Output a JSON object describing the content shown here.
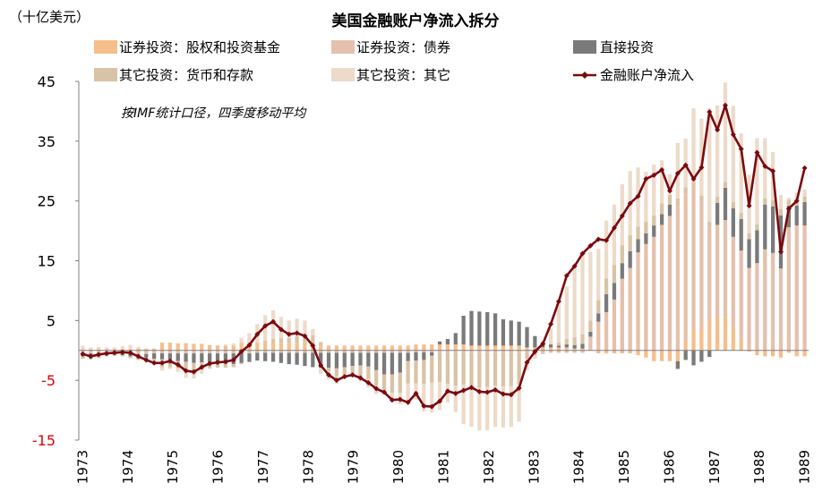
{
  "colors": {
    "equity": "#F6BE8A",
    "debt": "#E4C0AD",
    "fdi": "#7A7A7A",
    "currency_deposits": "#D9C3A6",
    "other_other": "#EDDAC9",
    "net_flow": "#7B0A0F",
    "negative_tick": "#E00000",
    "axis": "#808080"
  },
  "chart_data": {
    "type": "bar",
    "stacked": true,
    "title": "美国金融账户净流入拆分",
    "unit_label": "（十亿美元）",
    "annotation": "按IMF统计口径，四季度移动平均",
    "ylim": [
      -15,
      45
    ],
    "y_ticks": [
      {
        "value": 45,
        "label": "45"
      },
      {
        "value": 35,
        "label": "35"
      },
      {
        "value": 25,
        "label": "25"
      },
      {
        "value": 15,
        "label": "15"
      },
      {
        "value": 5,
        "label": "5"
      },
      {
        "value": -5,
        "label": "-5"
      },
      {
        "value": -15,
        "label": "-15"
      }
    ],
    "x_tick_labels": [
      "1973",
      "1974",
      "1975",
      "1976",
      "1977",
      "1978",
      "1979",
      "1980",
      "1981",
      "1982",
      "1983",
      "1984",
      "1985",
      "1986",
      "1987",
      "1988",
      "1989"
    ],
    "grid": false,
    "legend_position": "top",
    "series": [
      {
        "key": "equity",
        "name": "证券投资：股权和投资基金",
        "kind": "bar",
        "values": [
          0.2,
          0.2,
          0.2,
          0.2,
          0.2,
          0.2,
          0.2,
          0.3,
          0.3,
          0.3,
          1.3,
          1.3,
          1.2,
          1.2,
          1.1,
          1.1,
          0.9,
          0.8,
          0.8,
          0.8,
          1.3,
          1.3,
          1.3,
          1.3,
          1.3,
          1.2,
          1.2,
          1.2,
          1.2,
          0.8,
          0.8,
          0.8,
          0.8,
          0.8,
          0.8,
          0.8,
          0.8,
          0.8,
          0.8,
          0.8,
          0.8,
          0.8,
          1.0,
          1.0,
          1.0,
          1.0,
          1.0,
          1.0,
          1.0,
          0.8,
          0.8,
          0.8,
          0.8,
          0.8,
          0.8,
          0.8,
          0.5,
          0.5,
          0.5,
          0.5,
          0.5,
          0.5,
          0.3,
          0.3,
          0.3,
          -0.5,
          -0.5,
          -0.5,
          -0.5,
          -0.5,
          -0.8,
          -1.2,
          -1.8,
          -1.8,
          -1.8,
          -1.8,
          1.6,
          3.4,
          3.7,
          4.9,
          5.5,
          5.6,
          3.9,
          1.7,
          -0.2,
          -0.8,
          -1.0,
          -1.0,
          -1.2,
          -0.4,
          -1.0,
          -1.0
        ]
      },
      {
        "key": "debt",
        "name": "证券投资：债券",
        "kind": "bar",
        "values": [
          -0.4,
          -0.5,
          -0.4,
          -0.4,
          -0.4,
          -0.4,
          -0.4,
          -0.7,
          -0.6,
          -0.5,
          -0.5,
          -0.5,
          -0.5,
          -0.5,
          -0.5,
          -0.5,
          -0.5,
          -0.5,
          -0.5,
          -0.5,
          -0.5,
          -0.5,
          -0.4,
          -0.4,
          -0.4,
          -0.4,
          -0.4,
          -0.4,
          -0.4,
          -0.4,
          -0.4,
          -0.4,
          -0.4,
          -0.4,
          -0.4,
          -0.4,
          -0.4,
          -0.4,
          -0.4,
          -0.4,
          -0.4,
          -0.4,
          -0.3,
          -0.3,
          -0.3,
          -0.3,
          -0.3,
          -0.3,
          -0.3,
          -0.4,
          -0.4,
          -0.4,
          -0.4,
          -0.4,
          -0.4,
          -0.4,
          -0.4,
          -0.4,
          -0.4,
          -0.4,
          -0.4,
          -0.4,
          -0.4,
          -0.4,
          2.0,
          4.8,
          6.4,
          8.5,
          12.0,
          13.8,
          16.4,
          17.8,
          19.0,
          21.0,
          22.5,
          24.0,
          24.5,
          24.8,
          21.2,
          15.6,
          15.5,
          16.2,
          15.1,
          15.0,
          13.8,
          14.6,
          16.9,
          16.3,
          13.7,
          20.6,
          20.9,
          20.9
        ]
      },
      {
        "key": "fdi",
        "name": "直接投资",
        "kind": "bar",
        "values": [
          -0.6,
          -0.8,
          -0.6,
          -0.4,
          -0.3,
          -0.4,
          -0.6,
          -0.6,
          -0.6,
          -0.9,
          -1.0,
          -1.1,
          -1.3,
          -1.4,
          -1.6,
          -1.5,
          -1.6,
          -1.6,
          -1.7,
          -1.8,
          -1.6,
          -1.4,
          -1.3,
          -1.4,
          -1.5,
          -1.7,
          -1.9,
          -2.0,
          -2.2,
          -2.4,
          -2.5,
          -2.5,
          -2.6,
          -2.4,
          -2.2,
          -2.1,
          -2.3,
          -2.9,
          -3.6,
          -3.6,
          -3.3,
          -1.4,
          -1.4,
          -1.3,
          -0.6,
          0.5,
          0.9,
          1.9,
          4.8,
          5.8,
          5.7,
          5.6,
          5.4,
          4.4,
          4.2,
          4.0,
          3.4,
          1.9,
          0.8,
          0.5,
          0.3,
          0.5,
          0.6,
          0.8,
          0.8,
          1.4,
          3.0,
          2.8,
          2.6,
          2.8,
          2.2,
          1.8,
          1.9,
          1.8,
          1.9,
          -1.3,
          -1.6,
          -2.5,
          -1.9,
          -1.1,
          3.7,
          5.4,
          4.8,
          5.3,
          4.8,
          5.5,
          7.5,
          7.8,
          8.9,
          3.6,
          3.3,
          3.9
        ]
      },
      {
        "key": "currency_deposits",
        "name": "其它投资：货币和存款",
        "kind": "bar",
        "values": [
          -0.4,
          -0.2,
          -0.3,
          -0.2,
          -0.2,
          -0.2,
          -0.3,
          -0.3,
          -0.4,
          -0.3,
          -1.3,
          -1.2,
          -1.2,
          -1.2,
          -1.3,
          -1.2,
          -0.9,
          -0.8,
          -0.7,
          -0.5,
          -0.2,
          -0.1,
          0.0,
          0.3,
          0.6,
          0.9,
          0.9,
          1.2,
          1.4,
          1.7,
          0.6,
          -0.6,
          -1.3,
          -1.3,
          -1.6,
          -1.8,
          -2.1,
          -2.6,
          -3.0,
          -3.1,
          -3.4,
          -3.7,
          -3.8,
          -4.0,
          -4.5,
          -5.0,
          -5.3,
          -5.6,
          -5.4,
          -5.7,
          -5.9,
          -5.7,
          -5.5,
          -5.6,
          -5.6,
          -5.3,
          -1.0,
          -0.5,
          -0.2,
          0.1,
          0.5,
          0.9,
          1.3,
          1.6,
          1.9,
          2.2,
          2.6,
          3.0,
          3.0,
          2.7,
          2.1,
          1.9,
          1.7,
          1.8,
          1.6,
          1.4,
          1.2,
          1.0,
          1.0,
          1.0,
          1.0,
          1.0,
          1.0,
          1.0,
          1.0,
          1.0,
          1.0,
          1.0,
          1.0,
          1.0,
          1.0,
          1.0
        ]
      },
      {
        "key": "other_other",
        "name": "其它投资：其它",
        "kind": "bar",
        "values": [
          0.6,
          0.3,
          0.4,
          0.3,
          0.3,
          0.5,
          0.7,
          0.3,
          -0.3,
          -0.7,
          -0.6,
          -0.3,
          -0.6,
          -1.5,
          -1.3,
          -0.7,
          -0.1,
          0.1,
          0.2,
          0.4,
          0.8,
          1.6,
          3.1,
          4.3,
          4.8,
          3.5,
          2.9,
          2.9,
          2.4,
          1.1,
          -1.0,
          -1.4,
          -1.3,
          -0.6,
          -0.3,
          -0.9,
          -1.4,
          -1.4,
          -0.2,
          -1.1,
          -1.9,
          -3.4,
          -2.7,
          -4.6,
          -5.0,
          -4.7,
          -3.1,
          -4.4,
          -6.6,
          -6.7,
          -7.1,
          -7.3,
          -6.9,
          -6.9,
          -6.8,
          -6.2,
          -1.9,
          -0.5,
          0.3,
          2.6,
          6.9,
          8.8,
          11.7,
          13.2,
          11.5,
          8.6,
          9.7,
          10.1,
          10.2,
          10.7,
          9.9,
          8.4,
          8.5,
          7.2,
          3.5,
          9.3,
          8.1,
          11.3,
          12.9,
          19.0,
          15.3,
          16.6,
          16.1,
          13.3,
          9.8,
          14.4,
          10.1,
          8.1,
          2.4,
          0.3,
          1.2,
          1.1
        ]
      },
      {
        "key": "net_flow",
        "name": "金融账户净流入",
        "kind": "line",
        "values": [
          -0.6,
          -1.0,
          -0.7,
          -0.5,
          -0.4,
          -0.3,
          -0.4,
          -1.0,
          -1.6,
          -2.1,
          -2.1,
          -1.8,
          -2.4,
          -3.4,
          -3.6,
          -2.8,
          -2.2,
          -2.0,
          -1.9,
          -1.6,
          -0.2,
          0.9,
          2.7,
          4.1,
          4.8,
          3.5,
          2.7,
          2.9,
          2.4,
          0.8,
          -2.5,
          -4.1,
          -5.0,
          -4.4,
          -4.1,
          -4.6,
          -5.4,
          -6.4,
          -7.0,
          -8.3,
          -8.2,
          -8.7,
          -7.2,
          -9.3,
          -9.4,
          -8.5,
          -6.8,
          -7.2,
          -6.7,
          -6.2,
          -6.9,
          -7.0,
          -6.6,
          -7.3,
          -7.4,
          -6.3,
          -2.0,
          -0.2,
          1.1,
          4.4,
          8.2,
          12.5,
          14.1,
          16.2,
          17.5,
          18.6,
          18.4,
          20.5,
          22.5,
          24.6,
          25.8,
          28.7,
          29.3,
          30.2,
          26.7,
          29.6,
          31.0,
          28.7,
          30.6,
          39.9,
          36.9,
          41.0,
          36.1,
          33.7,
          24.2,
          33.1,
          30.8,
          30.0,
          16.5,
          23.7,
          25.0,
          30.5
        ]
      }
    ]
  }
}
